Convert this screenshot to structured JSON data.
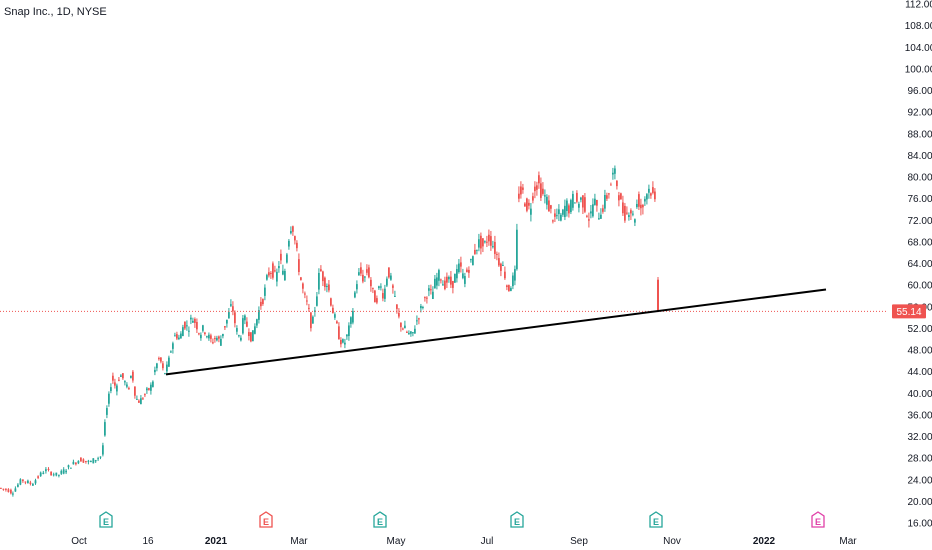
{
  "header": {
    "symbol_label": "Snap Inc., 1D, NYSE"
  },
  "chart_data": {
    "type": "candlestick",
    "title": "Snap Inc., 1D, NYSE",
    "ylim": [
      16,
      112
    ],
    "y_ticks": [
      "112.00",
      "108.00",
      "104.00",
      "100.00",
      "96.00",
      "92.00",
      "88.00",
      "84.00",
      "80.00",
      "76.00",
      "72.00",
      "68.00",
      "64.00",
      "60.00",
      "56.00",
      "52.00",
      "48.00",
      "44.00",
      "40.00",
      "36.00",
      "32.00",
      "28.00",
      "24.00",
      "20.00",
      "16.00"
    ],
    "x_ticks": [
      {
        "label": "Oct",
        "bold": false
      },
      {
        "label": "16",
        "bold": false
      },
      {
        "label": "2021",
        "bold": true
      },
      {
        "label": "Mar",
        "bold": false
      },
      {
        "label": "May",
        "bold": false
      },
      {
        "label": "Jul",
        "bold": false
      },
      {
        "label": "Sep",
        "bold": false
      },
      {
        "label": "Nov",
        "bold": false
      },
      {
        "label": "2022",
        "bold": true
      },
      {
        "label": "Mar",
        "bold": false
      }
    ],
    "last_price": "55.14",
    "colors": {
      "up": "#26a69a",
      "down": "#ef5350",
      "trendline": "#000000",
      "price_line": "#ef5350",
      "earnings_past": "#26a69a",
      "earnings_future": "#e040a8"
    },
    "series_path": [
      [
        0,
        22.5
      ],
      [
        10,
        22.0
      ],
      [
        12,
        21.5
      ],
      [
        22,
        24.0
      ],
      [
        32,
        23.2
      ],
      [
        45,
        25.8
      ],
      [
        58,
        24.8
      ],
      [
        70,
        26.5
      ],
      [
        80,
        27.8
      ],
      [
        90,
        27.2
      ],
      [
        102,
        28.5
      ],
      [
        106,
        36.0
      ],
      [
        108,
        38.0
      ],
      [
        112,
        43.0
      ],
      [
        116,
        41.0
      ],
      [
        120,
        43.5
      ],
      [
        124,
        42.5
      ],
      [
        128,
        40.5
      ],
      [
        132,
        44.0
      ],
      [
        136,
        39.0
      ],
      [
        140,
        38.5
      ],
      [
        144,
        39.5
      ],
      [
        148,
        40.5
      ],
      [
        152,
        41.5
      ],
      [
        156,
        45.0
      ],
      [
        160,
        46.5
      ],
      [
        164,
        43.5
      ],
      [
        168,
        45.0
      ],
      [
        172,
        49.0
      ],
      [
        176,
        51.0
      ],
      [
        180,
        50.0
      ],
      [
        184,
        53.0
      ],
      [
        188,
        52.0
      ],
      [
        192,
        54.0
      ],
      [
        196,
        53.0
      ],
      [
        200,
        51.0
      ],
      [
        204,
        52.0
      ],
      [
        208,
        50.5
      ],
      [
        212,
        49.5
      ],
      [
        216,
        50.5
      ],
      [
        220,
        49.5
      ],
      [
        224,
        52.0
      ],
      [
        228,
        54.0
      ],
      [
        232,
        56.5
      ],
      [
        236,
        52.0
      ],
      [
        240,
        50.0
      ],
      [
        244,
        54.0
      ],
      [
        248,
        52.0
      ],
      [
        252,
        50.0
      ],
      [
        256,
        53.0
      ],
      [
        260,
        56.0
      ],
      [
        264,
        58.0
      ],
      [
        268,
        62.0
      ],
      [
        272,
        63.0
      ],
      [
        276,
        61.0
      ],
      [
        280,
        65.0
      ],
      [
        284,
        61.0
      ],
      [
        288,
        68.0
      ],
      [
        292,
        72.0
      ],
      [
        296,
        67.0
      ],
      [
        300,
        62.0
      ],
      [
        304,
        58.0
      ],
      [
        308,
        56.0
      ],
      [
        312,
        52.0
      ],
      [
        316,
        57.0
      ],
      [
        320,
        63.0
      ],
      [
        324,
        61.0
      ],
      [
        328,
        60.0
      ],
      [
        332,
        56.0
      ],
      [
        336,
        53.0
      ],
      [
        340,
        50.0
      ],
      [
        344,
        49.0
      ],
      [
        348,
        51.0
      ],
      [
        352,
        54.0
      ],
      [
        356,
        60.0
      ],
      [
        360,
        62.5
      ],
      [
        364,
        61.0
      ],
      [
        368,
        63.0
      ],
      [
        372,
        59.0
      ],
      [
        376,
        57.0
      ],
      [
        380,
        60.0
      ],
      [
        384,
        58.0
      ],
      [
        388,
        63.0
      ],
      [
        392,
        60.0
      ],
      [
        396,
        56.0
      ],
      [
        400,
        53.0
      ],
      [
        404,
        52.0
      ],
      [
        408,
        51.0
      ],
      [
        412,
        50.5
      ],
      [
        416,
        53.0
      ],
      [
        420,
        55.0
      ],
      [
        424,
        57.0
      ],
      [
        428,
        59.0
      ],
      [
        432,
        58.0
      ],
      [
        436,
        61.0
      ],
      [
        440,
        62.0
      ],
      [
        444,
        60.0
      ],
      [
        448,
        61.0
      ],
      [
        452,
        60.0
      ],
      [
        456,
        62.0
      ],
      [
        460,
        63.5
      ],
      [
        464,
        61.0
      ],
      [
        468,
        63.0
      ],
      [
        472,
        64.5
      ],
      [
        476,
        67.0
      ],
      [
        480,
        68.0
      ],
      [
        484,
        67.0
      ],
      [
        488,
        69.0
      ],
      [
        492,
        68.0
      ],
      [
        496,
        66.0
      ],
      [
        500,
        64.0
      ],
      [
        504,
        63.0
      ],
      [
        508,
        59.0
      ],
      [
        512,
        60.5
      ],
      [
        516,
        62.5
      ],
      [
        518,
        76.5
      ],
      [
        522,
        77.5
      ],
      [
        526,
        75.0
      ],
      [
        530,
        74.0
      ],
      [
        534,
        78.0
      ],
      [
        538,
        79.0
      ],
      [
        542,
        77.0
      ],
      [
        546,
        76.0
      ],
      [
        550,
        74.0
      ],
      [
        554,
        72.0
      ],
      [
        558,
        73.0
      ],
      [
        562,
        72.5
      ],
      [
        566,
        75.0
      ],
      [
        570,
        74.0
      ],
      [
        574,
        76.5
      ],
      [
        578,
        75.0
      ],
      [
        582,
        76.0
      ],
      [
        586,
        74.0
      ],
      [
        590,
        72.0
      ],
      [
        594,
        76.0
      ],
      [
        598,
        73.0
      ],
      [
        602,
        74.0
      ],
      [
        606,
        76.0
      ],
      [
        610,
        78.0
      ],
      [
        614,
        81.0
      ],
      [
        618,
        78.0
      ],
      [
        622,
        74.0
      ],
      [
        626,
        73.0
      ],
      [
        630,
        74.5
      ],
      [
        634,
        72.0
      ],
      [
        638,
        76.0
      ],
      [
        642,
        74.0
      ],
      [
        646,
        77.0
      ],
      [
        650,
        78.0
      ],
      [
        654,
        76.0
      ],
      [
        656,
        75.0
      ]
    ],
    "gap_candle": {
      "open": 61.0,
      "high": 61.5,
      "low": 55.0,
      "close": 55.14
    },
    "trendline": {
      "x1": 166,
      "y1": 43.5,
      "x2": 826,
      "y2": 59.2
    },
    "earnings_markers": [
      {
        "x": 106,
        "kind": "past"
      },
      {
        "x": 266,
        "kind": "past_red"
      },
      {
        "x": 380,
        "kind": "past"
      },
      {
        "x": 517,
        "kind": "past"
      },
      {
        "x": 656,
        "kind": "past"
      },
      {
        "x": 818,
        "kind": "future"
      }
    ],
    "earnings_label": "E",
    "grid": false,
    "legend": "none"
  }
}
